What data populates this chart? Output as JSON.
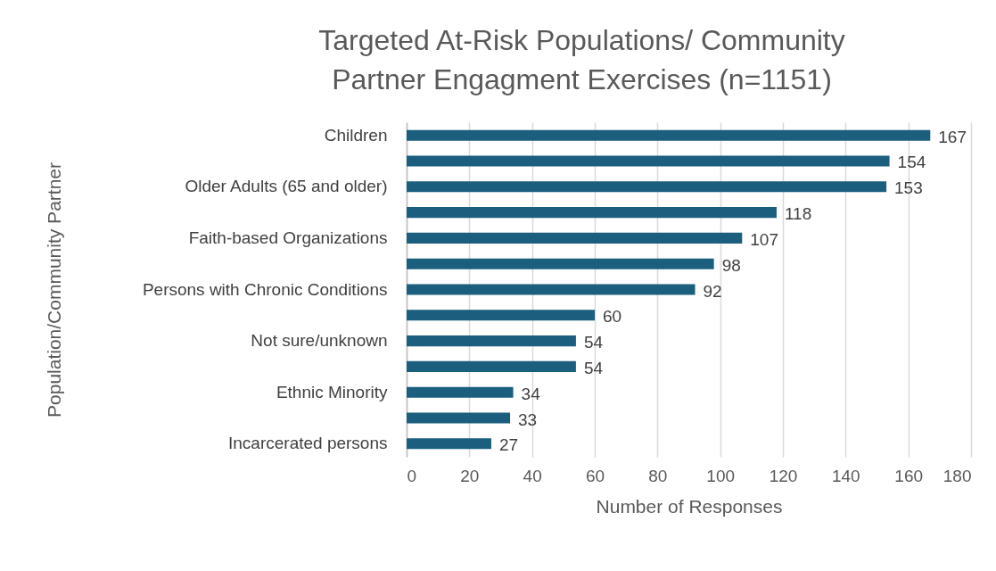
{
  "chart_data": {
    "type": "bar",
    "orientation": "horizontal",
    "title": "Targeted At-Risk Populations/ Community Partner Engagment Exercises (n=1151)",
    "xlabel": "Number of Responses",
    "ylabel": "Population/Community Partner",
    "categories": [
      "Children",
      null,
      "Older Adults (65 and older)",
      null,
      "Faith-based Organizations",
      null,
      "Persons with Chronic Conditions",
      null,
      "Not sure/unknown",
      null,
      "Ethnic Minority",
      null,
      "Incarcerated persons"
    ],
    "values": [
      167,
      154,
      153,
      118,
      107,
      98,
      92,
      60,
      54,
      54,
      34,
      33,
      27
    ],
    "color": "#1b5e7d",
    "xlim": [
      0,
      180
    ],
    "xticks": [
      0,
      20,
      40,
      60,
      80,
      100,
      120,
      140,
      160,
      180
    ],
    "grid": "x",
    "data_labels": true
  }
}
